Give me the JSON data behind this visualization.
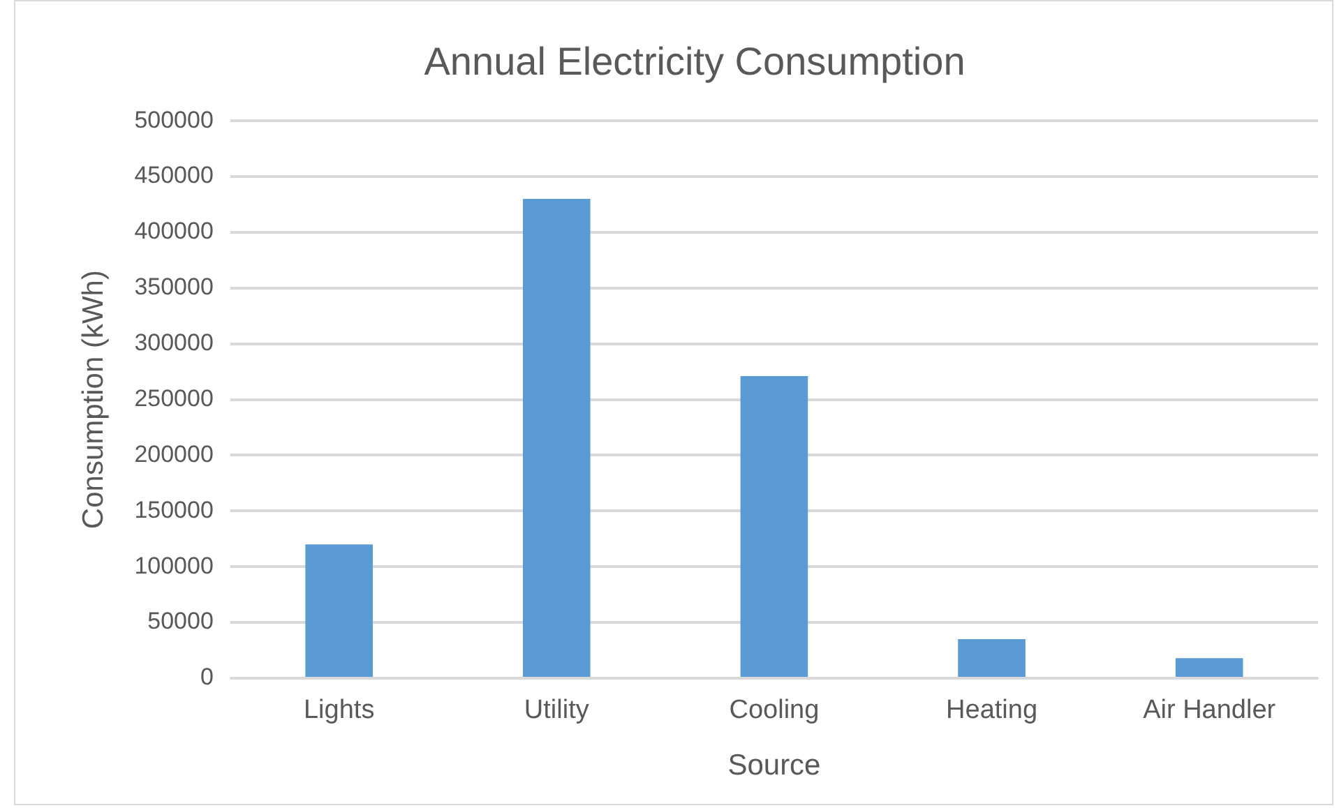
{
  "chart_data": {
    "type": "bar",
    "title": "Annual Electricity Consumption",
    "xlabel": "Source",
    "ylabel": "Consumption (kWh)",
    "categories": [
      "Lights",
      "Utility",
      "Cooling",
      "Heating",
      "Air Handler"
    ],
    "values": [
      120000,
      430000,
      271000,
      35000,
      18000
    ],
    "color": "#5b9bd5",
    "ylim": [
      0,
      500000
    ],
    "yticks": [
      0,
      50000,
      100000,
      150000,
      200000,
      250000,
      300000,
      350000,
      400000,
      450000,
      500000
    ],
    "grid": "y",
    "legend": false
  }
}
